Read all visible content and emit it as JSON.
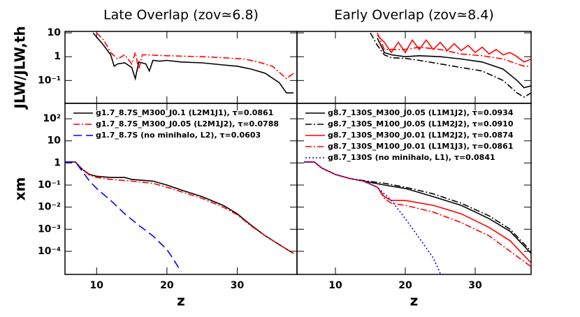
{
  "chart_data": [
    {
      "type": "line",
      "title": "Late Overlap (zov≃6.8)",
      "ylabel": "JLW/JLW,th",
      "log_y": true,
      "xlim": [
        5.5,
        38.5
      ],
      "ylim": [
        0.011,
        11.5
      ],
      "xticks": [
        10,
        20,
        30
      ],
      "xtick_labels": false,
      "yticks": [
        {
          "value": 0.1,
          "label": "10⁻¹"
        },
        1,
        10
      ],
      "ytick_labels": true,
      "series": [
        {
          "color": "#000000",
          "dash": "solid",
          "x": [
            9.5,
            11,
            12,
            12.5,
            13,
            14,
            15,
            15.5,
            16,
            17,
            17.5,
            18,
            19,
            20,
            22,
            25,
            28,
            30,
            32,
            34,
            36,
            37,
            38
          ],
          "values": [
            10,
            3,
            1.2,
            0.4,
            0.5,
            0.55,
            0.35,
            0.12,
            0.6,
            0.5,
            0.25,
            0.7,
            0.65,
            0.7,
            0.6,
            0.55,
            0.45,
            0.4,
            0.3,
            0.2,
            0.08,
            0.03,
            0.03
          ]
        },
        {
          "color": "#ff0000",
          "dash": "dashdot",
          "x": [
            10,
            11,
            12,
            13,
            14,
            15,
            15.5,
            16,
            16.5,
            17,
            20,
            25,
            28,
            31,
            33,
            35,
            37,
            38
          ],
          "values": [
            10,
            5,
            1.5,
            0.8,
            1.2,
            0.5,
            1.5,
            0.3,
            1.2,
            1.2,
            1.1,
            1.0,
            0.9,
            0.8,
            0.6,
            0.4,
            0.12,
            0.2
          ]
        }
      ]
    },
    {
      "type": "line",
      "title": "Early Overlap (zov≃8.4)",
      "log_y": true,
      "xlim": [
        4.5,
        38
      ],
      "ylim": [
        0.011,
        11.5
      ],
      "xticks": [
        10,
        20,
        30
      ],
      "xtick_labels": false,
      "yticks": [
        0.1,
        1,
        10
      ],
      "ytick_labels": false,
      "series": [
        {
          "color": "#000000",
          "dash": "solid",
          "x": [
            16,
            17,
            18,
            20,
            22,
            25,
            28,
            31,
            34,
            36,
            37,
            38
          ],
          "values": [
            6,
            1.5,
            1.2,
            1.0,
            1.1,
            1.0,
            0.8,
            0.6,
            0.3,
            0.1,
            0.05,
            0.06
          ]
        },
        {
          "color": "#000000",
          "dash": "dashdot",
          "x": [
            15,
            16,
            17,
            18,
            20,
            22,
            25,
            28,
            31,
            34,
            36,
            37,
            38
          ],
          "values": [
            10,
            3,
            1.2,
            0.9,
            0.85,
            0.7,
            0.5,
            0.35,
            0.25,
            0.1,
            0.03,
            0.02,
            0.03
          ]
        },
        {
          "color": "#ff0000",
          "dash": "solid",
          "x": [
            16,
            17,
            18,
            19,
            20,
            21,
            22,
            23,
            24,
            25,
            26,
            27,
            28,
            29,
            30,
            31,
            32,
            33,
            34,
            35,
            36,
            37,
            38
          ],
          "values": [
            8,
            4,
            1.5,
            4,
            1.5,
            5,
            2,
            5,
            2,
            4,
            1.8,
            3.5,
            1.8,
            3,
            1.5,
            2.5,
            1.3,
            2,
            1.2,
            1.5,
            1,
            0.6,
            0.8
          ]
        },
        {
          "color": "#ff0000",
          "dash": "dashdot",
          "x": [
            16,
            17,
            18,
            20,
            22,
            25,
            28,
            31,
            34,
            36,
            37,
            38
          ],
          "values": [
            10,
            2,
            2,
            2,
            2.5,
            2,
            1.3,
            1.1,
            0.8,
            0.5,
            0.4,
            0.4
          ]
        }
      ]
    },
    {
      "type": "line",
      "xlabel": "z",
      "ylabel": "xm",
      "log_y": true,
      "xlim": [
        5.5,
        38.5
      ],
      "ylim": [
        9e-06,
        500
      ],
      "xticks": [
        10,
        20,
        30
      ],
      "xtick_labels": true,
      "yticks": [
        {
          "value": 0.0001,
          "label": "10⁻⁴"
        },
        {
          "value": 0.001,
          "label": "10⁻³"
        },
        {
          "value": 0.01,
          "label": "10⁻²"
        },
        {
          "value": 0.1,
          "label": "10⁻¹"
        },
        1,
        10,
        {
          "value": 100,
          "label": "10²"
        }
      ],
      "ytick_labels": true,
      "legend": "upper left",
      "series": [
        {
          "name": "g1.7_8.7S_M300_J0.1  (L2M1J1), τ=0.0861",
          "color": "#000000",
          "dash": "solid",
          "x": [
            5.5,
            7,
            8,
            9,
            10,
            12,
            14,
            15,
            18,
            20,
            22,
            25,
            28,
            30,
            32,
            34,
            36,
            38
          ],
          "values": [
            1.1,
            1.1,
            0.5,
            0.3,
            0.25,
            0.22,
            0.22,
            0.18,
            0.15,
            0.1,
            0.06,
            0.03,
            0.012,
            0.005,
            0.0015,
            0.0005,
            0.0002,
            8e-05
          ]
        },
        {
          "name": "g1.7_8.7S_M300_J0.05 (L2M1J2), τ=0.0788",
          "color": "#ff0000",
          "dash": "dashdot",
          "x": [
            5.5,
            7,
            8,
            9,
            10,
            12,
            15,
            18,
            20,
            22,
            25,
            28,
            30,
            32,
            34,
            36,
            38
          ],
          "values": [
            1.1,
            1.1,
            0.5,
            0.28,
            0.22,
            0.18,
            0.15,
            0.12,
            0.08,
            0.05,
            0.025,
            0.01,
            0.0045,
            0.0014,
            0.0005,
            0.0002,
            8e-05
          ]
        },
        {
          "name": "g1.7_8.7S (no minihalo, L2), τ=0.0603",
          "color": "#0000ff",
          "dash": "dashed",
          "x": [
            5.5,
            7,
            8,
            9,
            10,
            12,
            14,
            16,
            18,
            20,
            21,
            22
          ],
          "values": [
            1.1,
            1.1,
            0.4,
            0.15,
            0.07,
            0.02,
            0.005,
            0.0015,
            0.0005,
            0.00012,
            4e-05,
            1.2e-05
          ]
        }
      ]
    },
    {
      "type": "line",
      "xlabel": "z",
      "log_y": true,
      "xlim": [
        4.5,
        38
      ],
      "ylim": [
        9e-06,
        500
      ],
      "xticks": [
        10,
        20,
        30
      ],
      "xtick_labels": true,
      "yticks": [
        0.0001,
        0.001,
        0.01,
        0.1,
        1,
        10,
        100
      ],
      "ytick_labels": false,
      "legend": "upper left",
      "series": [
        {
          "name": "g8.7_130S_M300_J0.05 (L1M1J2), τ=0.0934",
          "color": "#000000",
          "dash": "solid",
          "x": [
            5.5,
            7,
            8,
            10,
            12,
            14,
            17,
            20,
            24,
            28,
            32,
            35,
            38
          ],
          "values": [
            1.1,
            1.1,
            0.6,
            0.3,
            0.2,
            0.15,
            0.1,
            0.07,
            0.03,
            0.012,
            0.003,
            0.0008,
            8e-05
          ]
        },
        {
          "name": "g8.7_130S_M100_J0.05 (L1M2J2), τ=0.0910",
          "color": "#000000",
          "dash": "dashdot",
          "x": [
            5.5,
            7,
            8,
            10,
            12,
            14,
            17,
            20,
            24,
            28,
            32,
            35,
            38
          ],
          "values": [
            1.1,
            1.1,
            0.6,
            0.3,
            0.2,
            0.16,
            0.12,
            0.08,
            0.04,
            0.015,
            0.004,
            0.001,
            0.0001
          ]
        },
        {
          "name": "g8.7_130S_M300_J0.01 (L1M2J2), τ=0.0874",
          "color": "#ff0000",
          "dash": "solid",
          "x": [
            5.5,
            7,
            8,
            10,
            12,
            14,
            16,
            17,
            18,
            20,
            24,
            28,
            32,
            35,
            38
          ],
          "values": [
            1.1,
            1.1,
            0.6,
            0.3,
            0.2,
            0.15,
            0.08,
            0.03,
            0.02,
            0.02,
            0.012,
            0.005,
            0.0012,
            0.0003,
            3e-05
          ]
        },
        {
          "name": "g8.7_130S_M100_J0.01 (L1M1J3), τ=0.0861",
          "color": "#ff0000",
          "dash": "dashdot",
          "x": [
            5.5,
            7,
            8,
            10,
            12,
            14,
            16,
            17,
            18,
            20,
            24,
            28,
            32,
            35,
            38
          ],
          "values": [
            1.1,
            1.1,
            0.6,
            0.3,
            0.2,
            0.15,
            0.08,
            0.025,
            0.015,
            0.012,
            0.006,
            0.002,
            0.0005,
            0.0001,
            2e-05
          ]
        },
        {
          "name": "g8.7_130S (no minihalo, L1), τ=0.0841",
          "color": "#0000ff",
          "dash": "dotted",
          "x": [
            5.5,
            7,
            8,
            10,
            12,
            14,
            16,
            18,
            20,
            22,
            24,
            25
          ],
          "values": [
            1.1,
            1.1,
            0.6,
            0.3,
            0.2,
            0.15,
            0.08,
            0.02,
            0.003,
            0.0004,
            5e-05,
            1e-05
          ]
        }
      ]
    }
  ]
}
